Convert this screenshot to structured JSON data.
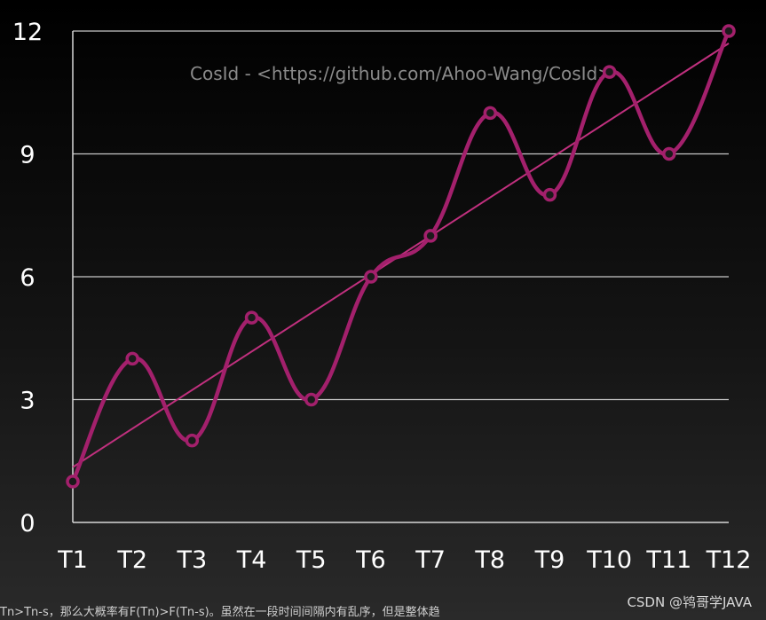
{
  "chart_data": {
    "type": "line",
    "categories": [
      "T1",
      "T2",
      "T3",
      "T4",
      "T5",
      "T6",
      "T7",
      "T8",
      "T9",
      "T10",
      "T11",
      "T12"
    ],
    "series": [
      {
        "values": [
          1,
          4,
          2,
          5,
          3,
          6,
          7,
          10,
          8,
          11,
          9,
          12
        ],
        "smooth": true,
        "markers": "circle"
      }
    ],
    "trendline": {
      "type": "linear",
      "start": 1.35,
      "end": 11.7
    },
    "ylim": [
      0,
      12
    ],
    "yticks": [
      0,
      3,
      6,
      9,
      12
    ],
    "grid": "horizontal",
    "annotation": "CosId - <https://github.com/Ahoo-Wang/CosId>",
    "colors": {
      "series": "#a3206c",
      "trend": "#c0307e",
      "grid": "#c8c8c8",
      "text": "#ffffff"
    }
  },
  "caption": "Tn>Tn-s，那么大概率有F(Tn)>F(Tn-s)。虽然在一段时间间隔内有乱序，但是整体趋",
  "credit": "CSDN @鸨哥学JAVA"
}
